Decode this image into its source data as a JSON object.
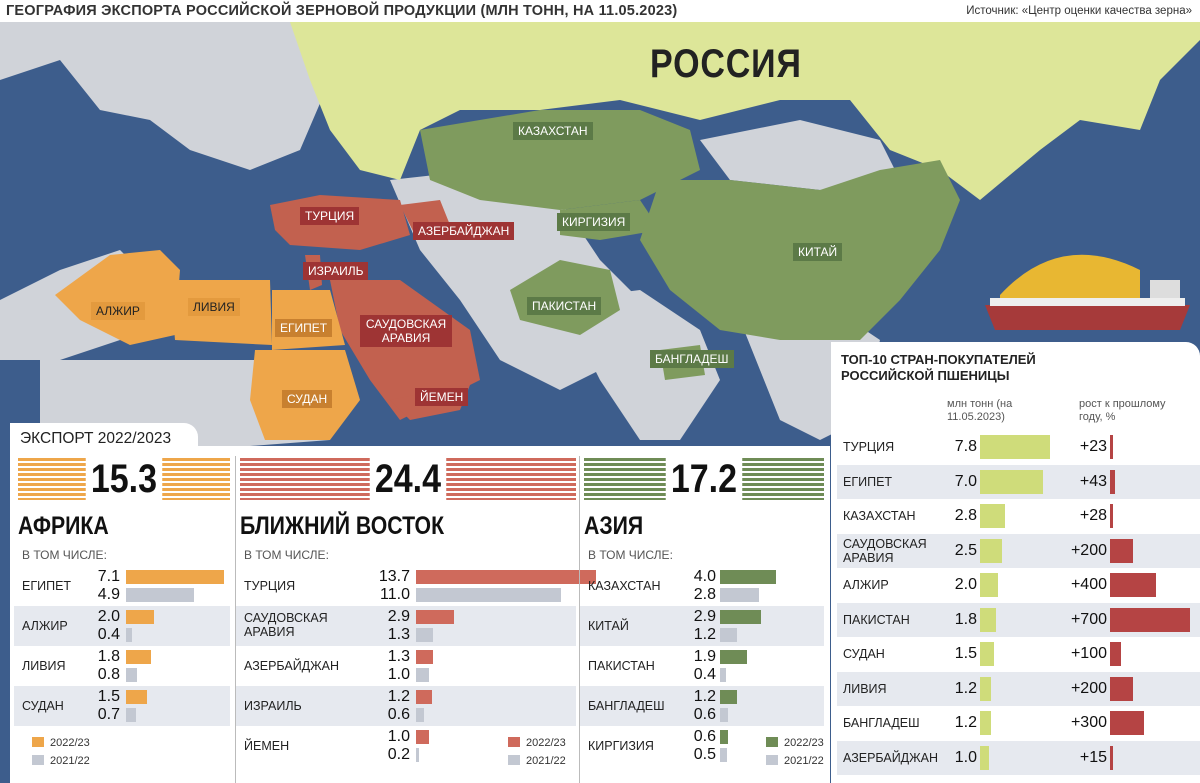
{
  "header": {
    "title": "ГЕОГРАФИЯ ЭКСПОРТА РОССИЙСКОЙ ЗЕРНОВОЙ ПРОДУКЦИИ (МЛН ТОНН, НА 11.05.2023)",
    "source": "Источник: «Центр оценки качества зерна»"
  },
  "map": {
    "russia_label": "РОССИЯ",
    "labels": {
      "kazakhstan": "КАЗАХСТАН",
      "turkey": "ТУРЦИЯ",
      "azerbaijan": "АЗЕРБАЙДЖАН",
      "kyrgyzstan": "КИРГИЗИЯ",
      "israel": "ИЗРАИЛЬ",
      "china": "КИТАЙ",
      "algeria": "АЛЖИР",
      "libya": "ЛИВИЯ",
      "egypt": "ЕГИПЕТ",
      "saudi": "САУДОВСКАЯ АРАВИЯ",
      "pakistan": "ПАКИСТАН",
      "bangladesh": "БАНГЛАДЕШ",
      "sudan": "СУДАН",
      "yemen": "ЙЕМЕН"
    }
  },
  "export": {
    "title": "ЭКСПОРТ 2022/2023",
    "included_label": "В ТОМ ЧИСЛЕ:",
    "legend_current": "2022/23",
    "legend_previous": "2021/22",
    "regions": [
      {
        "name": "АФРИКА",
        "total": "15.3",
        "color": "#eea64a",
        "rows": [
          {
            "name": "ЕГИПЕТ",
            "v1": 7.1,
            "v2": 4.9
          },
          {
            "name": "АЛЖИР",
            "v1": 2.0,
            "v2": 0.4
          },
          {
            "name": "ЛИВИЯ",
            "v1": 1.8,
            "v2": 0.8
          },
          {
            "name": "СУДАН",
            "v1": 1.5,
            "v2": 0.7
          }
        ]
      },
      {
        "name": "БЛИЖНИЙ ВОСТОК",
        "total": "24.4",
        "color": "#cf6a5c",
        "rows": [
          {
            "name": "ТУРЦИЯ",
            "v1": 13.7,
            "v2": 11.0
          },
          {
            "name": "САУДОВСКАЯ АРАВИЯ",
            "v1": 2.9,
            "v2": 1.3
          },
          {
            "name": "АЗЕРБАЙДЖАН",
            "v1": 1.3,
            "v2": 1.0
          },
          {
            "name": "ИЗРАИЛЬ",
            "v1": 1.2,
            "v2": 0.6
          },
          {
            "name": "ЙЕМЕН",
            "v1": 1.0,
            "v2": 0.2
          }
        ]
      },
      {
        "name": "АЗИЯ",
        "total": "17.2",
        "color": "#6f8c56",
        "rows": [
          {
            "name": "КАЗАХСТАН",
            "v1": 4.0,
            "v2": 2.8
          },
          {
            "name": "КИТАЙ",
            "v1": 2.9,
            "v2": 1.2
          },
          {
            "name": "ПАКИСТАН",
            "v1": 1.9,
            "v2": 0.4
          },
          {
            "name": "БАНГЛАДЕШ",
            "v1": 1.2,
            "v2": 0.6
          },
          {
            "name": "КИРГИЗИЯ",
            "v1": 0.6,
            "v2": 0.5
          }
        ]
      }
    ],
    "previous_color": "#c3c8d2"
  },
  "top10": {
    "title": "ТОП-10 СТРАН-ПОКУПАТЕЛЕЙ РОССИЙСКОЙ ПШЕНИЦЫ",
    "col_volume": "млн тонн (на 11.05.2023)",
    "col_growth": "рост к прошлому году, %",
    "rows": [
      {
        "name": "ТУРЦИЯ",
        "value": 7.8,
        "growth": 23,
        "growth_label": "+23"
      },
      {
        "name": "ЕГИПЕТ",
        "value": 7.0,
        "growth": 43,
        "growth_label": "+43"
      },
      {
        "name": "КАЗАХСТАН",
        "value": 2.8,
        "growth": 28,
        "growth_label": "+28"
      },
      {
        "name": "САУДОВСКАЯ АРАВИЯ",
        "value": 2.5,
        "growth": 200,
        "growth_label": "+200"
      },
      {
        "name": "АЛЖИР",
        "value": 2.0,
        "growth": 400,
        "growth_label": "+400"
      },
      {
        "name": "ПАКИСТАН",
        "value": 1.8,
        "growth": 700,
        "growth_label": "+700"
      },
      {
        "name": "СУДАН",
        "value": 1.5,
        "growth": 100,
        "growth_label": "+100"
      },
      {
        "name": "ЛИВИЯ",
        "value": 1.2,
        "growth": 200,
        "growth_label": "+200"
      },
      {
        "name": "БАНГЛАДЕШ",
        "value": 1.2,
        "growth": 300,
        "growth_label": "+300"
      },
      {
        "name": "АЗЕРБАЙДЖАН",
        "value": 1.0,
        "growth": 15,
        "growth_label": "+15"
      }
    ]
  }
}
